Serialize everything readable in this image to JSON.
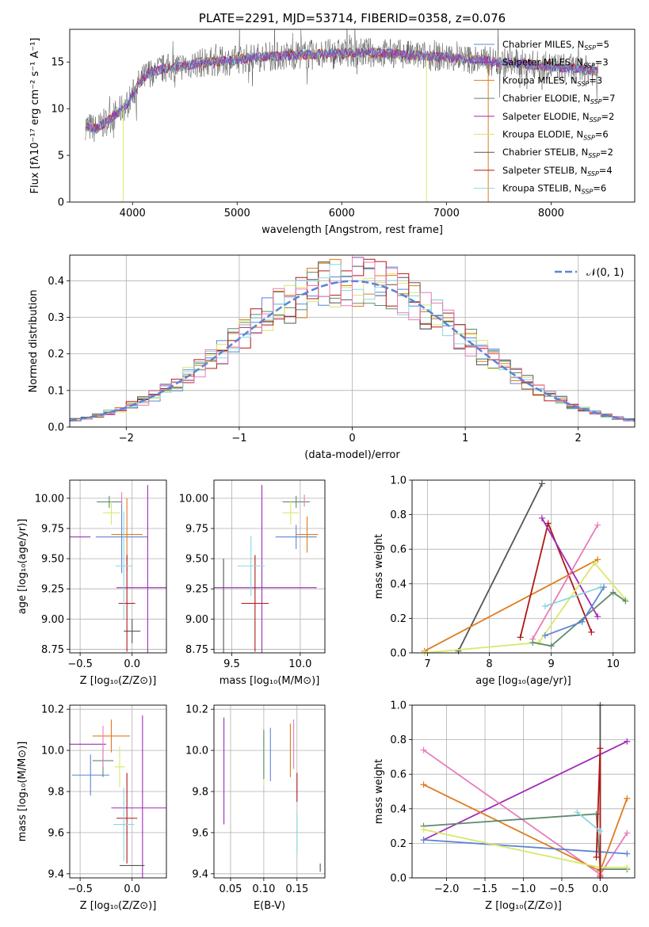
{
  "colors": {
    "Chabrier MILES": "#5b84d6",
    "Salpeter MILES": "#9b30b0",
    "Kroupa MILES": "#e07b1e",
    "Chabrier ELODIE": "#5f8a6b",
    "Salpeter ELODIE": "#a02bb8",
    "Kroupa ELODIE": "#d8e86a",
    "Chabrier STELIB": "#555555",
    "Salpeter STELIB": "#b01818",
    "Kroupa STELIB": "#8ad8e0",
    "pink": "#e87bb8",
    "normal": "#5b84d6"
  },
  "chart_data": [
    {
      "id": "spectrum",
      "type": "line",
      "title": "PLATE=2291, MJD=53714, FIBERID=0358, z=0.076",
      "xlabel": "wavelength [Angstrom, rest frame]",
      "ylabel": "Flux [fλ10⁻¹⁷ erg cm⁻² s⁻¹ A⁻¹]",
      "xlim": [
        3400,
        8800
      ],
      "ylim": [
        0,
        18.5
      ],
      "xticks": [
        4000,
        5000,
        6000,
        7000,
        8000
      ],
      "yticks": [
        0,
        5,
        10,
        15
      ],
      "legend_position": "right",
      "legend": [
        {
          "name": "Chabrier MILES",
          "label": "Chabrier MILES, N",
          "sub": "SSP",
          "suffix": "=5"
        },
        {
          "name": "Salpeter MILES",
          "label": "Salpeter MILES, N",
          "sub": "SSP",
          "suffix": "=3"
        },
        {
          "name": "Kroupa MILES",
          "label": "Kroupa MILES, N",
          "sub": "SSP",
          "suffix": "=3"
        },
        {
          "name": "Chabrier ELODIE",
          "label": "Chabrier ELODIE, N",
          "sub": "SSP",
          "suffix": "=7"
        },
        {
          "name": "Salpeter ELODIE",
          "label": "Salpeter ELODIE, N",
          "sub": "SSP",
          "suffix": "=2"
        },
        {
          "name": "Kroupa ELODIE",
          "label": "Kroupa ELODIE, N",
          "sub": "SSP",
          "suffix": "=6"
        },
        {
          "name": "Chabrier STELIB",
          "label": "Chabrier STELIB, N",
          "sub": "SSP",
          "suffix": "=2"
        },
        {
          "name": "Salpeter STELIB",
          "label": "Salpeter STELIB, N",
          "sub": "SSP",
          "suffix": "=4"
        },
        {
          "name": "Kroupa STELIB",
          "label": "Kroupa STELIB, N",
          "sub": "SSP",
          "suffix": "=6"
        }
      ],
      "continuum": [
        [
          3550,
          8.2
        ],
        [
          3650,
          7.8
        ],
        [
          3750,
          8.6
        ],
        [
          3850,
          9.5
        ],
        [
          3950,
          10.5
        ],
        [
          4050,
          12.5
        ],
        [
          4150,
          13.8
        ],
        [
          4300,
          14.3
        ],
        [
          4500,
          14.6
        ],
        [
          4700,
          15.0
        ],
        [
          4900,
          15.1
        ],
        [
          5100,
          15.4
        ],
        [
          5300,
          15.6
        ],
        [
          5500,
          15.7
        ],
        [
          5700,
          15.8
        ],
        [
          5900,
          15.9
        ],
        [
          6100,
          16.0
        ],
        [
          6300,
          16.0
        ],
        [
          6500,
          15.9
        ],
        [
          6700,
          15.7
        ],
        [
          6900,
          15.6
        ],
        [
          7100,
          15.4
        ],
        [
          7300,
          15.2
        ],
        [
          7500,
          15.0
        ],
        [
          7700,
          14.8
        ],
        [
          7900,
          14.6
        ],
        [
          8100,
          14.4
        ],
        [
          8300,
          14.2
        ],
        [
          8450,
          14.0
        ]
      ],
      "dropouts": [
        [
          3910,
          0
        ],
        [
          6810,
          0
        ],
        [
          7400,
          0
        ]
      ]
    },
    {
      "id": "residuals",
      "type": "histogram",
      "xlabel": "(data-model)/error",
      "ylabel": "Normed distribution",
      "xlim": [
        -2.5,
        2.5
      ],
      "ylim": [
        0,
        0.47
      ],
      "xticks": [
        -2,
        -1,
        0,
        1,
        2
      ],
      "yticks": [
        0.0,
        0.1,
        0.2,
        0.3,
        0.4
      ],
      "legend_label": "𝒩(0, 1)",
      "legend_position": "upper right",
      "bin_width": 0.1,
      "reference_curve": "normal(0,1)"
    },
    {
      "id": "age_vs_Z",
      "type": "errorbar",
      "xlabel": "Z [log₁₀(Z/Z⊙)]",
      "ylabel": "age  [log₁₀(age/yr)]",
      "xlim": [
        -0.6,
        0.33
      ],
      "ylim": [
        8.72,
        10.15
      ],
      "xticks": [
        -0.5,
        0.0
      ],
      "yticks": [
        8.75,
        9.0,
        9.25,
        9.5,
        9.75,
        10.0
      ],
      "points": [
        {
          "series": "Chabrier MILES",
          "x": -0.1,
          "y": 9.68,
          "xerr": 0.25,
          "yerr": 0.3
        },
        {
          "series": "Salpeter MILES",
          "x": -0.5,
          "y": 9.68,
          "xerr": 0.1,
          "yerr": 0.0
        },
        {
          "series": "Kroupa MILES",
          "x": -0.05,
          "y": 9.7,
          "xerr": 0.15,
          "yerr": 0.3
        },
        {
          "series": "Chabrier ELODIE",
          "x": -0.22,
          "y": 9.97,
          "xerr": 0.12,
          "yerr": 0.05
        },
        {
          "series": "Salpeter ELODIE",
          "x": 0.15,
          "y": 9.26,
          "xerr": 0.3,
          "yerr": 0.85
        },
        {
          "series": "Kroupa ELODIE",
          "x": -0.2,
          "y": 9.88,
          "xerr": 0.08,
          "yerr": 0.1
        },
        {
          "series": "Chabrier STELIB",
          "x": 0.0,
          "y": 8.9,
          "xerr": 0.08,
          "yerr": 0.1
        },
        {
          "series": "Salpeter STELIB",
          "x": -0.05,
          "y": 9.13,
          "xerr": 0.08,
          "yerr": 0.4
        },
        {
          "series": "Kroupa STELIB",
          "x": -0.08,
          "y": 9.44,
          "xerr": 0.08,
          "yerr": 0.45
        },
        {
          "series": "pink",
          "x": -0.1,
          "y": 10.0,
          "xerr": 0.0,
          "yerr": 0.05
        }
      ]
    },
    {
      "id": "age_vs_mass",
      "type": "errorbar",
      "xlabel": "mass [log₁₀(M/M⊙)]",
      "xlim": [
        9.37,
        10.18
      ],
      "ylim": [
        8.72,
        10.15
      ],
      "xticks": [
        9.5,
        10.0
      ],
      "yticks": [
        8.75,
        9.0,
        9.25,
        9.5,
        9.75,
        10.0
      ],
      "points": [
        {
          "series": "Chabrier MILES",
          "x": 9.97,
          "y": 9.68,
          "xerr": 0.15,
          "yerr": 0.1
        },
        {
          "series": "Salpeter MILES",
          "x": 9.72,
          "y": 9.26,
          "xerr": 0.4,
          "yerr": 0.0
        },
        {
          "series": "Kroupa MILES",
          "x": 10.05,
          "y": 9.7,
          "xerr": 0.08,
          "yerr": 0.15
        },
        {
          "series": "Chabrier ELODIE",
          "x": 9.97,
          "y": 9.97,
          "xerr": 0.1,
          "yerr": 0.05
        },
        {
          "series": "Salpeter ELODIE",
          "x": 9.72,
          "y": 9.26,
          "xerr": 0.0,
          "yerr": 0.85
        },
        {
          "series": "Kroupa ELODIE",
          "x": 9.93,
          "y": 9.88,
          "xerr": 0.06,
          "yerr": 0.1
        },
        {
          "series": "Chabrier STELIB",
          "x": 9.44,
          "y": 8.9,
          "xerr": 0.0,
          "yerr": 0.6
        },
        {
          "series": "Salpeter STELIB",
          "x": 9.67,
          "y": 9.13,
          "xerr": 0.1,
          "yerr": 0.4
        },
        {
          "series": "Kroupa STELIB",
          "x": 9.64,
          "y": 9.44,
          "xerr": 0.1,
          "yerr": 0.25
        },
        {
          "series": "pink",
          "x": 10.03,
          "y": 9.98,
          "xerr": 0.0,
          "yerr": 0.05
        }
      ]
    },
    {
      "id": "mass_weight_vs_age",
      "type": "line",
      "xlabel": "age  [log₁₀(age/yr)]",
      "ylabel": "mass weight",
      "xlim": [
        6.75,
        10.35
      ],
      "ylim": [
        0,
        1.0
      ],
      "xticks": [
        7,
        8,
        9,
        10
      ],
      "yticks": [
        0.0,
        0.2,
        0.4,
        0.6,
        0.8,
        1.0
      ],
      "series": [
        {
          "name": "Chabrier STELIB",
          "x": [
            7.5,
            8.85
          ],
          "y": [
            0.01,
            0.98
          ]
        },
        {
          "name": "Kroupa MILES",
          "x": [
            6.95,
            9.75
          ],
          "y": [
            0.01,
            0.54
          ]
        },
        {
          "name": "Salpeter STELIB",
          "x": [
            8.5,
            8.95,
            9.65
          ],
          "y": [
            0.09,
            0.75,
            0.12
          ]
        },
        {
          "name": "Salpeter ELODIE",
          "x": [
            8.85,
            9.75
          ],
          "y": [
            0.78,
            0.21
          ]
        },
        {
          "name": "pink",
          "x": [
            8.7,
            9.75
          ],
          "y": [
            0.08,
            0.74
          ]
        },
        {
          "name": "Kroupa ELODIE",
          "x": [
            6.95,
            8.8,
            9.7,
            10.2
          ],
          "y": [
            0.0,
            0.06,
            0.52,
            0.31
          ]
        },
        {
          "name": "Kroupa STELIB",
          "x": [
            8.9,
            9.8
          ],
          "y": [
            0.27,
            0.38
          ]
        },
        {
          "name": "Chabrier ELODIE",
          "x": [
            8.7,
            9.0,
            10.0,
            10.2
          ],
          "y": [
            0.06,
            0.04,
            0.35,
            0.3
          ]
        },
        {
          "name": "Chabrier MILES",
          "x": [
            8.9,
            9.5,
            9.85
          ],
          "y": [
            0.1,
            0.18,
            0.38
          ]
        }
      ]
    },
    {
      "id": "mass_vs_Z",
      "type": "errorbar",
      "xlabel": "Z [log₁₀(Z/Z⊙)]",
      "ylabel": "mass [log₁₀(M/M⊙)]",
      "xlim": [
        -0.6,
        0.33
      ],
      "ylim": [
        9.38,
        10.22
      ],
      "xticks": [
        -0.5,
        0.0
      ],
      "yticks": [
        9.4,
        9.6,
        9.8,
        10.0,
        10.2
      ],
      "points": [
        {
          "series": "Chabrier MILES",
          "x": -0.4,
          "y": 9.88,
          "xerr": 0.18,
          "yerr": 0.1
        },
        {
          "series": "Salpeter MILES",
          "x": -0.45,
          "y": 10.03,
          "xerr": 0.2,
          "yerr": 0.0
        },
        {
          "series": "Kroupa MILES",
          "x": -0.2,
          "y": 10.07,
          "xerr": 0.18,
          "yerr": 0.08
        },
        {
          "series": "Chabrier ELODIE",
          "x": -0.28,
          "y": 9.95,
          "xerr": 0.1,
          "yerr": 0.08
        },
        {
          "series": "Salpeter ELODIE",
          "x": 0.1,
          "y": 9.72,
          "xerr": 0.3,
          "yerr": 0.45
        },
        {
          "series": "Kroupa ELODIE",
          "x": -0.12,
          "y": 9.92,
          "xerr": 0.05,
          "yerr": 0.1
        },
        {
          "series": "Chabrier STELIB",
          "x": 0.0,
          "y": 9.44,
          "xerr": 0.12,
          "yerr": 0.0
        },
        {
          "series": "Salpeter STELIB",
          "x": -0.05,
          "y": 9.67,
          "xerr": 0.1,
          "yerr": 0.22
        },
        {
          "series": "Kroupa STELIB",
          "x": -0.08,
          "y": 9.64,
          "xerr": 0.1,
          "yerr": 0.18
        },
        {
          "series": "pink",
          "x": -0.28,
          "y": 10.02,
          "xerr": 0.0,
          "yerr": 0.1
        }
      ]
    },
    {
      "id": "mass_vs_EBV",
      "type": "errorbar",
      "xlabel": "E(B-V)",
      "xlim": [
        0.025,
        0.192
      ],
      "ylim": [
        9.38,
        10.22
      ],
      "xticks": [
        0.05,
        0.1,
        0.15
      ],
      "yticks": [
        9.4,
        9.6,
        9.8,
        10.0,
        10.2
      ],
      "points": [
        {
          "series": "Salpeter ELODIE",
          "x": 0.04,
          "y": 9.9,
          "xerr": 0.0,
          "yerr": 0.26
        },
        {
          "series": "Kroupa ELODIE",
          "x": 0.1,
          "y": 9.95,
          "xerr": 0.0,
          "yerr": 0.12
        },
        {
          "series": "Chabrier ELODIE",
          "x": 0.1,
          "y": 9.98,
          "xerr": 0.0,
          "yerr": 0.12
        },
        {
          "series": "Chabrier MILES",
          "x": 0.11,
          "y": 9.98,
          "xerr": 0.0,
          "yerr": 0.13
        },
        {
          "series": "Kroupa MILES",
          "x": 0.14,
          "y": 10.0,
          "xerr": 0.0,
          "yerr": 0.13
        },
        {
          "series": "pink",
          "x": 0.145,
          "y": 10.03,
          "xerr": 0.0,
          "yerr": 0.12
        },
        {
          "series": "Salpeter STELIB",
          "x": 0.15,
          "y": 9.82,
          "xerr": 0.0,
          "yerr": 0.07
        },
        {
          "series": "Kroupa STELIB",
          "x": 0.15,
          "y": 9.6,
          "xerr": 0.0,
          "yerr": 0.1
        },
        {
          "series": "Chabrier STELIB",
          "x": 0.185,
          "y": 9.43,
          "xerr": 0.0,
          "yerr": 0.02
        }
      ]
    },
    {
      "id": "mass_weight_vs_Z",
      "type": "line",
      "xlabel": "Z [log₁₀(Z/Z⊙)]",
      "ylabel": "mass weight",
      "xlim": [
        -2.45,
        0.45
      ],
      "ylim": [
        0,
        1.0
      ],
      "xticks": [
        -2.0,
        -1.5,
        -1.0,
        -0.5,
        0.0
      ],
      "yticks": [
        0.0,
        0.2,
        0.4,
        0.6,
        0.8,
        1.0
      ],
      "series": [
        {
          "name": "Chabrier STELIB",
          "x": [
            0.0,
            0.0
          ],
          "y": [
            1.0,
            0.0
          ]
        },
        {
          "name": "Salpeter ELODIE",
          "x": [
            -2.3,
            0.35
          ],
          "y": [
            0.22,
            0.79
          ]
        },
        {
          "name": "pink",
          "x": [
            -2.3,
            0.0,
            0.35
          ],
          "y": [
            0.74,
            0.02,
            0.26
          ]
        },
        {
          "name": "Kroupa MILES",
          "x": [
            -2.3,
            0.0,
            0.35
          ],
          "y": [
            0.54,
            0.04,
            0.46
          ]
        },
        {
          "name": "Chabrier ELODIE",
          "x": [
            -2.3,
            -0.05,
            0.0,
            0.35
          ],
          "y": [
            0.3,
            0.37,
            0.05,
            0.05
          ]
        },
        {
          "name": "Chabrier MILES",
          "x": [
            -2.3,
            0.35
          ],
          "y": [
            0.22,
            0.14
          ]
        },
        {
          "name": "Kroupa ELODIE",
          "x": [
            -2.3,
            0.0,
            0.35
          ],
          "y": [
            0.28,
            0.06,
            0.06
          ]
        },
        {
          "name": "Salpeter STELIB",
          "x": [
            -0.05,
            0.0,
            0.0
          ],
          "y": [
            0.12,
            0.75,
            0.01
          ]
        },
        {
          "name": "Kroupa STELIB",
          "x": [
            -0.3,
            0.0
          ],
          "y": [
            0.38,
            0.27
          ]
        }
      ]
    }
  ]
}
